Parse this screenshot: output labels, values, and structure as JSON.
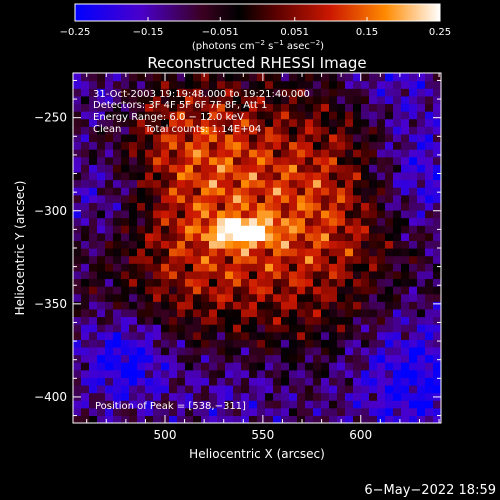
{
  "chart_data": {
    "type": "heatmap",
    "title": "Reconstructed RHESSI Image",
    "xlabel": "Heliocentric X (arcsec)",
    "ylabel": "Heliocentric Y (arcsec)",
    "xlim": [
      453,
      641
    ],
    "ylim": [
      -414,
      -226
    ],
    "x_ticks": [
      500,
      550,
      600
    ],
    "y_ticks": [
      -250,
      -300,
      -350,
      -400
    ],
    "colorbar": {
      "ticks": [
        -0.25,
        -0.15,
        -0.051,
        0.051,
        0.15,
        0.25
      ],
      "tick_labels": [
        "−0.25",
        "−0.15",
        "−0.051",
        "0.051",
        "0.15",
        "0.25"
      ],
      "range": [
        -0.25,
        0.25
      ],
      "unit_label": "(photons cm",
      "unit_exp1": "−2",
      "unit_mid": " s",
      "unit_exp2": "−1",
      "unit_end": " asec",
      "unit_exp3": "−2",
      "unit_close": ")"
    },
    "annotations": {
      "time": "31-Oct-2003 19:19:48.000 to 19:21:40.000",
      "detectors": "Detectors: 3F 4F 5F 6F 7F 8F, Att 1",
      "energy": "Energy Range: 6.0 − 12.0 keV",
      "clean": "Clean",
      "counts": "Total counts: 1.14E+04",
      "peak": "Position of Peak = [538,−311]"
    },
    "peak": {
      "x": 538,
      "y": -311,
      "value": 0.25
    }
  },
  "footer": {
    "date": "6−May−2022 18:59"
  }
}
